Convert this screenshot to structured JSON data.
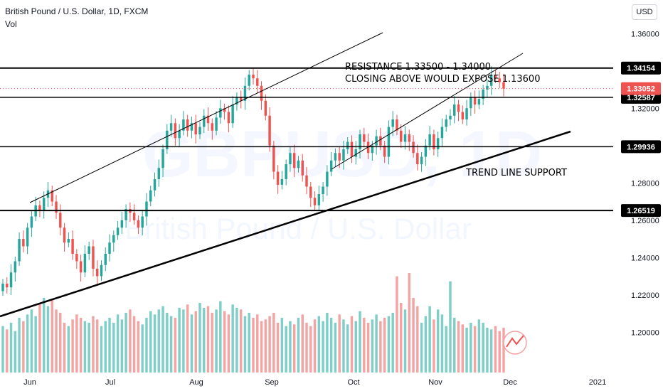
{
  "header": {
    "symbol": "British Pound / U.S. Dollar, 1D, FXCM",
    "volume_label": "Vol",
    "currency_button": "USD"
  },
  "watermark": {
    "ticker": "GBPUSD, 1D",
    "name": "British Pound / U.S. Dollar"
  },
  "colors": {
    "up": "#26a69a",
    "down": "#ef5350",
    "vol_up": "#7fcfc8",
    "vol_down": "#f4a4a3",
    "level_line": "#000000",
    "price_badge": "#ef5350",
    "level_badge": "#000000"
  },
  "chart_data": {
    "type": "candlestick",
    "symbol": "GBPUSD",
    "timeframe": "1D",
    "y_range": [
      1.178,
      1.378
    ],
    "yticks": [
      "1.36000",
      "1.34000",
      "1.32000",
      "1.30000",
      "1.28000",
      "1.26000",
      "1.24000",
      "1.22000",
      "1.20000"
    ],
    "yticks_values": [
      1.36,
      1.34,
      1.32,
      1.3,
      1.28,
      1.26,
      1.24,
      1.22,
      1.2
    ],
    "xticks": [
      "Jun",
      "Jul",
      "Aug",
      "Sep",
      "Oct",
      "Nov",
      "Dec",
      "2021"
    ],
    "current_price": "1.33052",
    "horizontal_levels": [
      {
        "label": "1.34154",
        "value": 1.34154
      },
      {
        "label": "1.32587",
        "value": 1.32587
      },
      {
        "label": "1.29936",
        "value": 1.29936
      },
      {
        "label": "1.26519",
        "value": 1.26519
      }
    ],
    "annotations": [
      "RESISTANCE 1.33500 - 1.34000",
      "CLOSING ABOVE WOULD EXPOSE 1.13600",
      "TREND LINE SUPPORT"
    ],
    "closes": [
      1.226,
      1.224,
      1.232,
      1.238,
      1.25,
      1.246,
      1.256,
      1.262,
      1.268,
      1.265,
      1.272,
      1.276,
      1.27,
      1.264,
      1.256,
      1.248,
      1.25,
      1.242,
      1.238,
      1.232,
      1.242,
      1.246,
      1.234,
      1.23,
      1.236,
      1.242,
      1.248,
      1.252,
      1.256,
      1.26,
      1.266,
      1.264,
      1.26,
      1.256,
      1.262,
      1.27,
      1.276,
      1.282,
      1.288,
      1.298,
      1.308,
      1.312,
      1.304,
      1.308,
      1.314,
      1.308,
      1.312,
      1.306,
      1.31,
      1.316,
      1.312,
      1.308,
      1.315,
      1.32,
      1.318,
      1.312,
      1.322,
      1.326,
      1.324,
      1.332,
      1.338,
      1.336,
      1.332,
      1.324,
      1.316,
      1.3,
      1.286,
      1.279,
      1.282,
      1.29,
      1.296,
      1.288,
      1.292,
      1.284,
      1.278,
      1.272,
      1.268,
      1.274,
      1.278,
      1.286,
      1.292,
      1.296,
      1.292,
      1.298,
      1.302,
      1.294,
      1.298,
      1.306,
      1.302,
      1.296,
      1.3,
      1.305,
      1.3,
      1.294,
      1.31,
      1.314,
      1.308,
      1.302,
      1.306,
      1.302,
      1.296,
      1.29,
      1.294,
      1.3,
      1.306,
      1.298,
      1.304,
      1.31,
      1.314,
      1.316,
      1.322,
      1.318,
      1.314,
      1.32,
      1.326,
      1.322,
      1.325,
      1.33,
      1.332,
      1.338,
      1.336,
      1.334,
      1.3305
    ],
    "volumes": [
      28,
      26,
      30,
      25,
      33,
      31,
      35,
      38,
      34,
      42,
      45,
      40,
      44,
      38,
      36,
      30,
      28,
      32,
      35,
      33,
      31,
      30,
      34,
      32,
      28,
      31,
      33,
      30,
      35,
      32,
      36,
      38,
      34,
      31,
      29,
      33,
      37,
      35,
      38,
      40,
      36,
      34,
      33,
      39,
      38,
      41,
      35,
      37,
      42,
      39,
      40,
      36,
      38,
      43,
      37,
      35,
      41,
      39,
      38,
      34,
      36,
      33,
      35,
      31,
      32,
      34,
      36,
      30,
      33,
      28,
      31,
      29,
      33,
      35,
      30,
      28,
      32,
      34,
      31,
      36,
      33,
      30,
      35,
      32,
      29,
      34,
      31,
      37,
      33,
      30,
      32,
      35,
      31,
      33,
      34,
      36,
      58,
      42,
      38,
      60,
      45,
      40,
      30,
      34,
      40,
      32,
      38,
      35,
      28,
      55,
      33,
      31,
      29,
      27,
      30,
      28,
      32,
      30,
      27,
      26,
      28,
      25,
      27
    ]
  }
}
